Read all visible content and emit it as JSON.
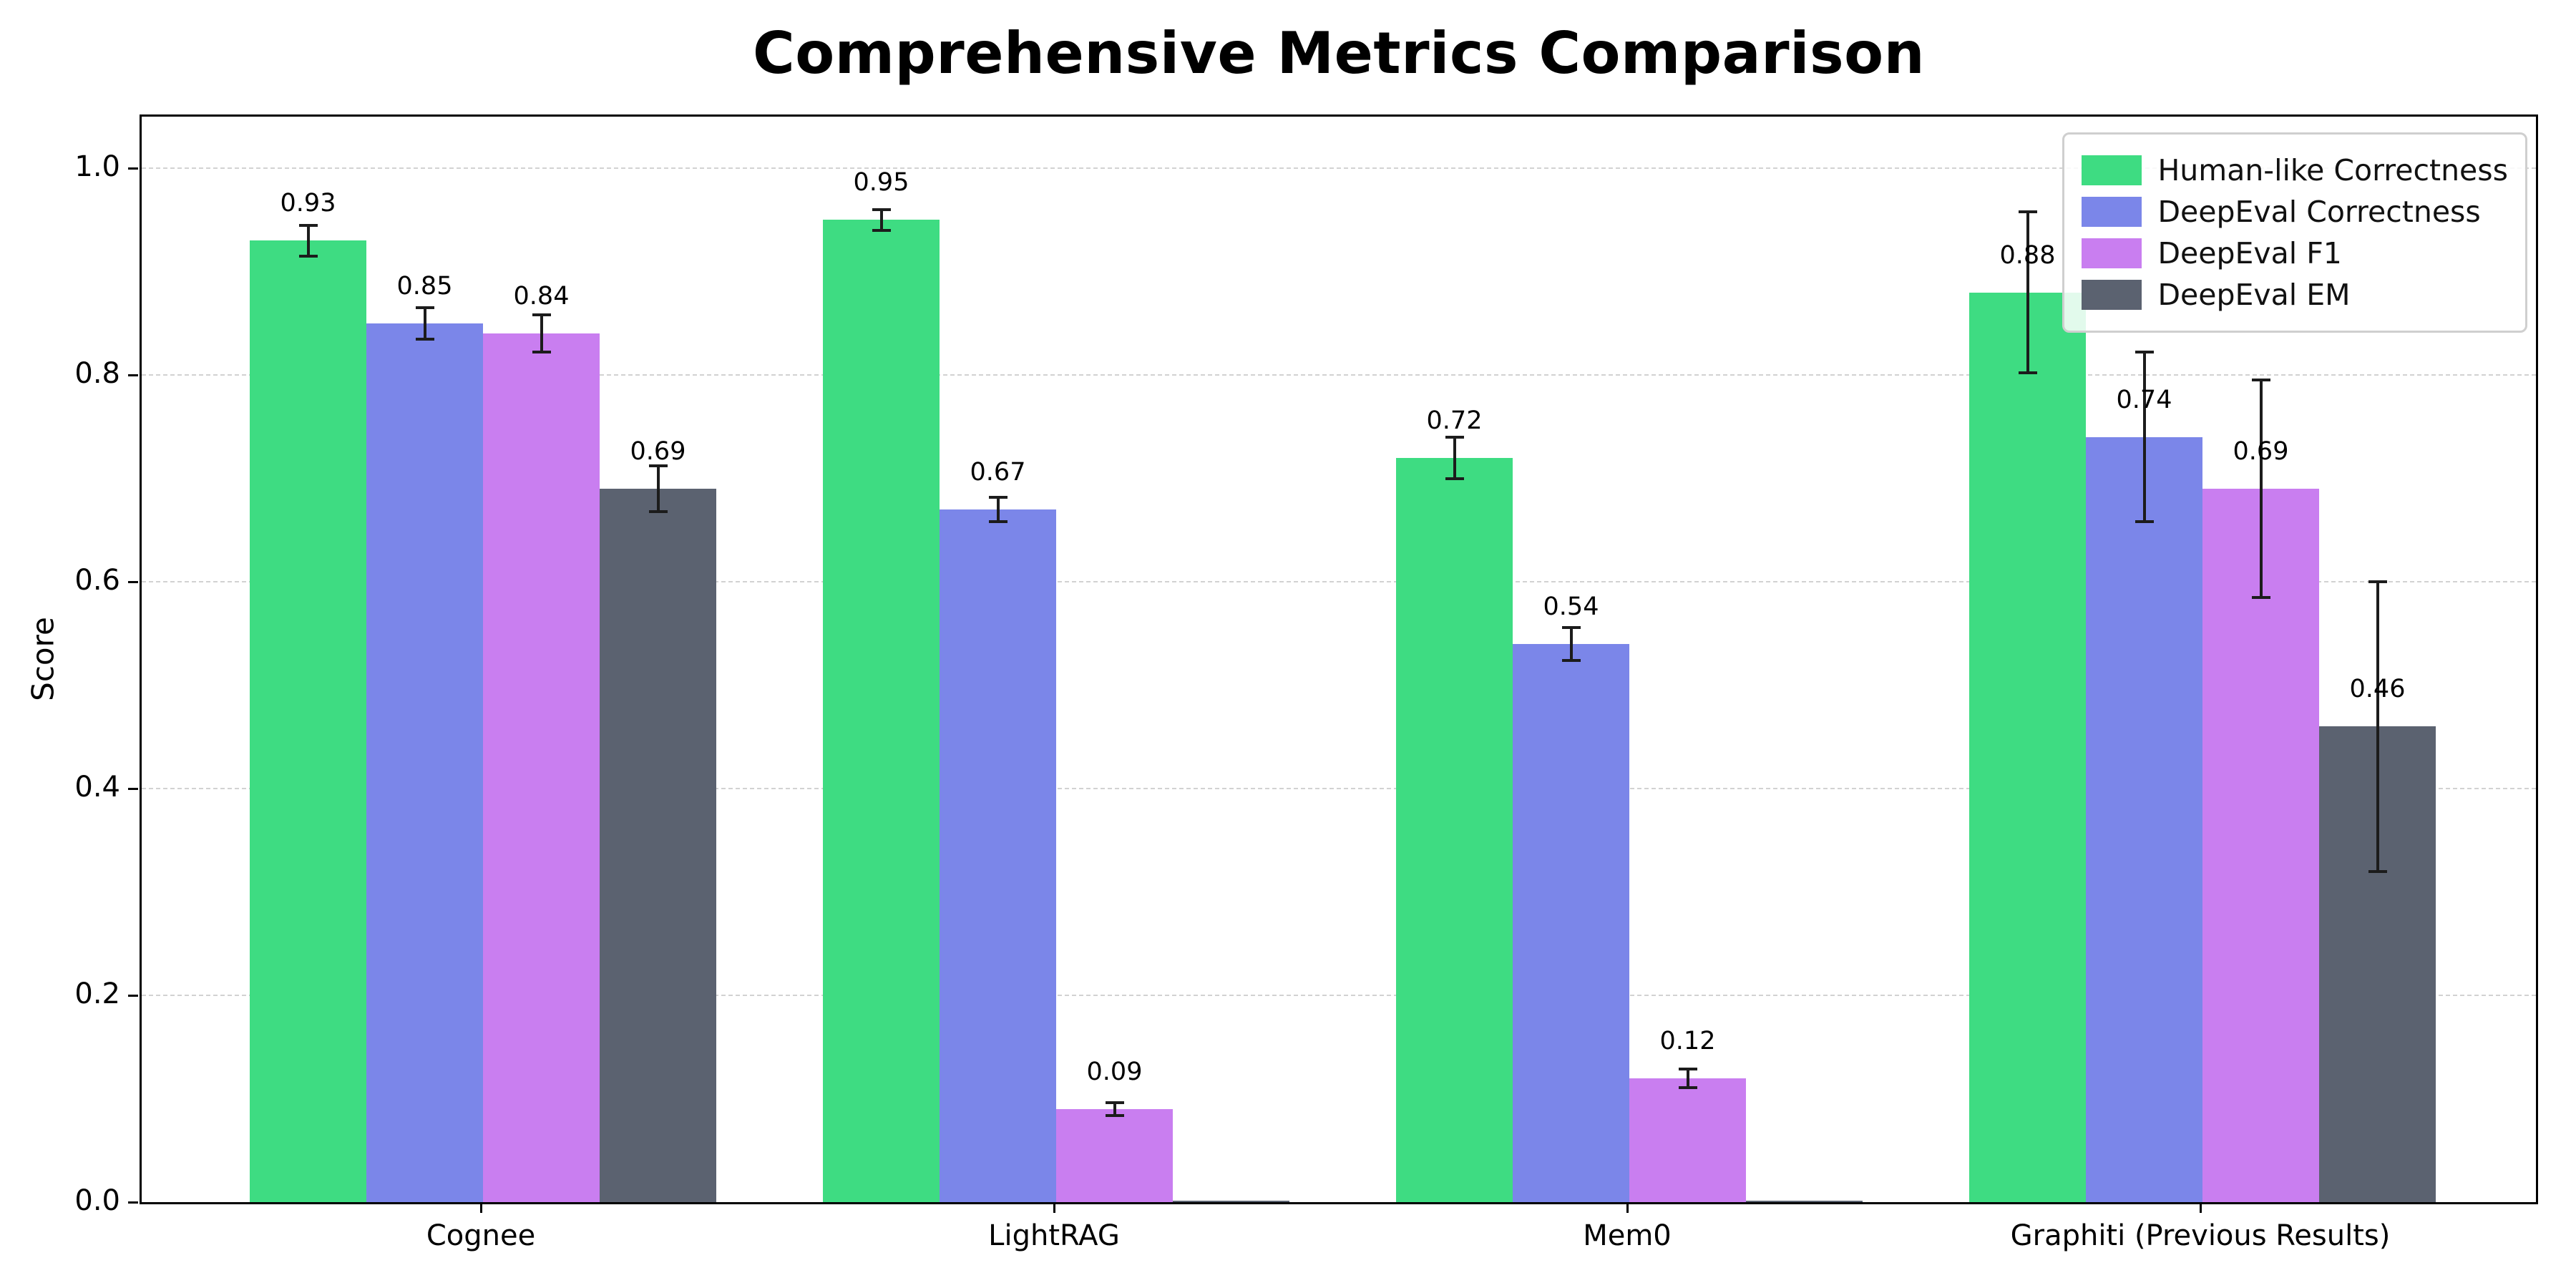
{
  "chart_data": {
    "type": "bar",
    "title": "Comprehensive Metrics Comparison",
    "xlabel": "",
    "ylabel": "Score",
    "ylim": [
      0,
      1.05
    ],
    "yticks": [
      0.0,
      0.2,
      0.4,
      0.6,
      0.8,
      1.0
    ],
    "grid": "dashed-horizontal",
    "legend_position": "upper right",
    "error_bar_color": "#1c1c1c",
    "categories": [
      "Cognee",
      "LightRAG",
      "Mem0",
      "Graphiti (Previous Results)"
    ],
    "series": [
      {
        "name": "Human-like Correctness",
        "color": "#3edc82",
        "values": [
          0.93,
          0.95,
          0.72,
          0.88
        ],
        "errors": [
          0.015,
          0.01,
          0.02,
          0.078
        ]
      },
      {
        "name": "DeepEval Correctness",
        "color": "#7b86e9",
        "values": [
          0.85,
          0.67,
          0.54,
          0.74
        ],
        "errors": [
          0.015,
          0.012,
          0.016,
          0.082
        ]
      },
      {
        "name": "DeepEval F1",
        "color": "#c97ef0",
        "values": [
          0.84,
          0.09,
          0.12,
          0.69
        ],
        "errors": [
          0.018,
          0.006,
          0.009,
          0.105
        ]
      },
      {
        "name": "DeepEval EM",
        "color": "#5b6270",
        "values": [
          0.69,
          0.0,
          0.0,
          0.46
        ],
        "errors": [
          0.022,
          0.0,
          0.0,
          0.14
        ]
      }
    ]
  }
}
